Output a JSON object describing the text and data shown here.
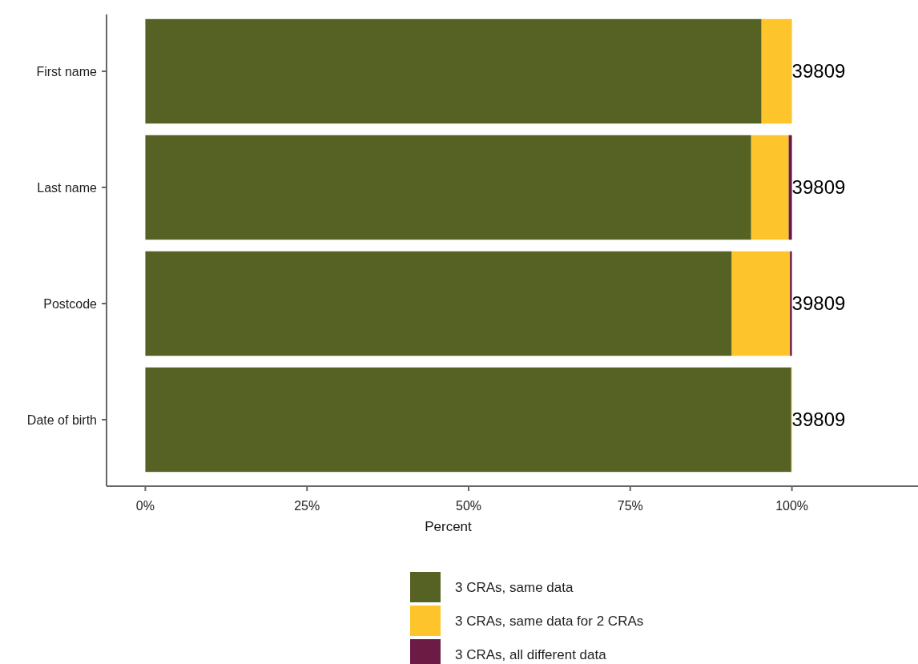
{
  "chart_data": {
    "type": "bar",
    "orientation": "horizontal",
    "stacked": true,
    "xlabel": "Percent",
    "categories": [
      "First name",
      "Last name",
      "Postcode",
      "Date of birth"
    ],
    "series": [
      {
        "name": "3 CRAs, same data",
        "color": "#556224",
        "values": [
          95.3,
          93.7,
          90.7,
          99.9
        ]
      },
      {
        "name": "3 CRAs, same data for 2 CRAs",
        "color": "#fdc52b",
        "values": [
          4.7,
          5.8,
          9.0,
          0.1
        ]
      },
      {
        "name": "3 CRAs, all different data",
        "color": "#6c1b44",
        "values": [
          0,
          0.5,
          0.3,
          0
        ]
      }
    ],
    "annotations": [
      "39809",
      "39809",
      "39809",
      "39809"
    ],
    "xlim": [
      -6,
      119.5
    ],
    "xticks": [
      {
        "value": 0,
        "label": "0%"
      },
      {
        "value": 25,
        "label": "25%"
      },
      {
        "value": 50,
        "label": "50%"
      },
      {
        "value": 75,
        "label": "75%"
      },
      {
        "value": 100,
        "label": "100%"
      }
    ],
    "legend": "bottom",
    "grid": false
  }
}
